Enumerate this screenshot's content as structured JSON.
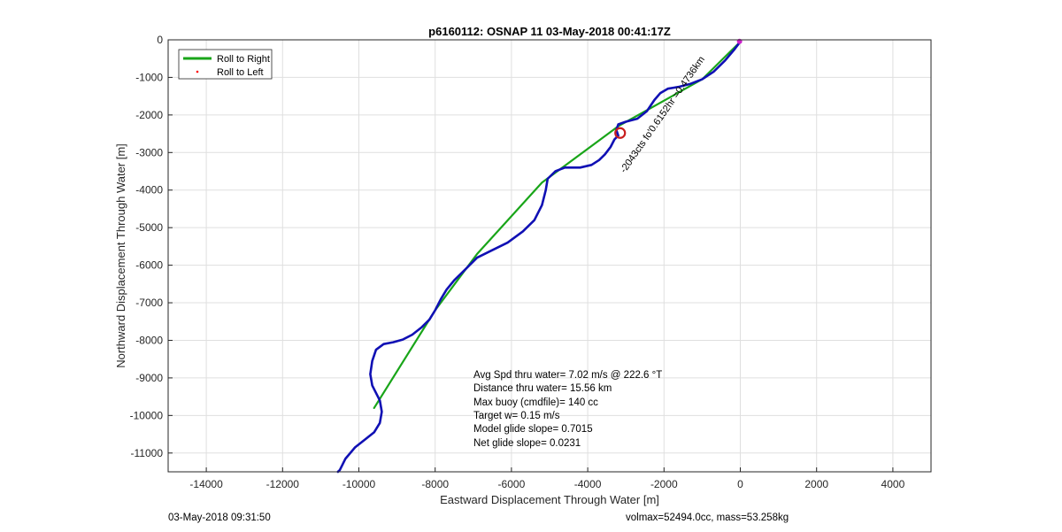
{
  "chart_data": {
    "type": "line",
    "title": "p6160112: OSNAP 11 03-May-2018 00:41:17Z",
    "xlabel": "Eastward Displacement Through Water [m]",
    "ylabel": "Northward Displacement Through Water [m]",
    "xlim": [
      -15000,
      5000
    ],
    "ylim": [
      -11500,
      0
    ],
    "x_ticks": [
      -14000,
      -12000,
      -10000,
      -8000,
      -6000,
      -4000,
      -2000,
      0,
      2000,
      4000
    ],
    "y_ticks": [
      0,
      -1000,
      -2000,
      -3000,
      -4000,
      -5000,
      -6000,
      -7000,
      -8000,
      -9000,
      -10000,
      -11000
    ],
    "grid": true,
    "legend_position": "top-left",
    "legend": [
      {
        "label": "Roll to Right",
        "style": "line",
        "color": "#19a519"
      },
      {
        "label": "Roll to Left",
        "style": "point",
        "color": "#ff0000"
      }
    ],
    "series": [
      {
        "name": "Roll to Right",
        "color": "#19a519",
        "points": [
          [
            0,
            -50
          ],
          [
            -1000,
            -1050
          ],
          [
            -3200,
            -2300
          ],
          [
            -5200,
            -3800
          ],
          [
            -6900,
            -5700
          ],
          [
            -8000,
            -7200
          ],
          [
            -9600,
            -9800
          ]
        ]
      },
      {
        "color": "#1010b4",
        "points": [
          [
            0,
            -50
          ],
          [
            -150,
            -250
          ],
          [
            -400,
            -550
          ],
          [
            -700,
            -850
          ],
          [
            -1000,
            -1050
          ],
          [
            -1300,
            -1170
          ],
          [
            -1600,
            -1250
          ],
          [
            -1900,
            -1300
          ],
          [
            -2100,
            -1420
          ],
          [
            -2250,
            -1600
          ],
          [
            -2450,
            -1900
          ],
          [
            -2700,
            -2100
          ],
          [
            -3000,
            -2180
          ],
          [
            -3200,
            -2250
          ],
          [
            -3250,
            -2400
          ],
          [
            -3200,
            -2550
          ],
          [
            -3300,
            -2650
          ],
          [
            -3400,
            -2850
          ],
          [
            -3550,
            -3050
          ],
          [
            -3700,
            -3200
          ],
          [
            -3900,
            -3330
          ],
          [
            -4200,
            -3400
          ],
          [
            -4600,
            -3400
          ],
          [
            -4850,
            -3500
          ],
          [
            -5050,
            -3700
          ],
          [
            -5100,
            -4000
          ],
          [
            -5200,
            -4400
          ],
          [
            -5400,
            -4800
          ],
          [
            -5700,
            -5100
          ],
          [
            -6100,
            -5400
          ],
          [
            -6500,
            -5600
          ],
          [
            -6900,
            -5800
          ],
          [
            -7200,
            -6100
          ],
          [
            -7500,
            -6400
          ],
          [
            -7700,
            -6650
          ],
          [
            -7850,
            -6900
          ],
          [
            -8000,
            -7200
          ],
          [
            -8150,
            -7450
          ],
          [
            -8350,
            -7650
          ],
          [
            -8600,
            -7850
          ],
          [
            -8850,
            -7980
          ],
          [
            -9100,
            -8050
          ],
          [
            -9350,
            -8100
          ],
          [
            -9550,
            -8250
          ],
          [
            -9650,
            -8550
          ],
          [
            -9700,
            -8900
          ],
          [
            -9650,
            -9200
          ],
          [
            -9550,
            -9400
          ],
          [
            -9450,
            -9600
          ],
          [
            -9400,
            -9900
          ],
          [
            -9450,
            -10200
          ],
          [
            -9600,
            -10450
          ],
          [
            -9850,
            -10650
          ],
          [
            -10100,
            -10850
          ],
          [
            -10350,
            -11150
          ],
          [
            -10500,
            -11450
          ],
          [
            -10550,
            -11500
          ]
        ]
      }
    ],
    "markers": [
      {
        "label": "target-circle",
        "x": -3150,
        "y": -2480,
        "color": "#c81e1e"
      },
      {
        "label": "start-point",
        "x": -20,
        "y": -40,
        "color": "#cc22cc"
      }
    ],
    "annotations": {
      "rotated_label": "-2043cts fo'0.6152hr =0.4736km"
    }
  },
  "stats": [
    "Avg Spd thru water=  7.02 m/s @ 222.6 °T",
    "Distance thru water= 15.56 km",
    "Max buoy (cmdfile)= 140 cc",
    "Target w= 0.15 m/s",
    "Model glide slope= 0.7015",
    "Net glide slope= 0.0231"
  ],
  "footer": {
    "left": "03-May-2018 09:31:50",
    "right": "volmax=52494.0cc, mass=53.258kg"
  }
}
